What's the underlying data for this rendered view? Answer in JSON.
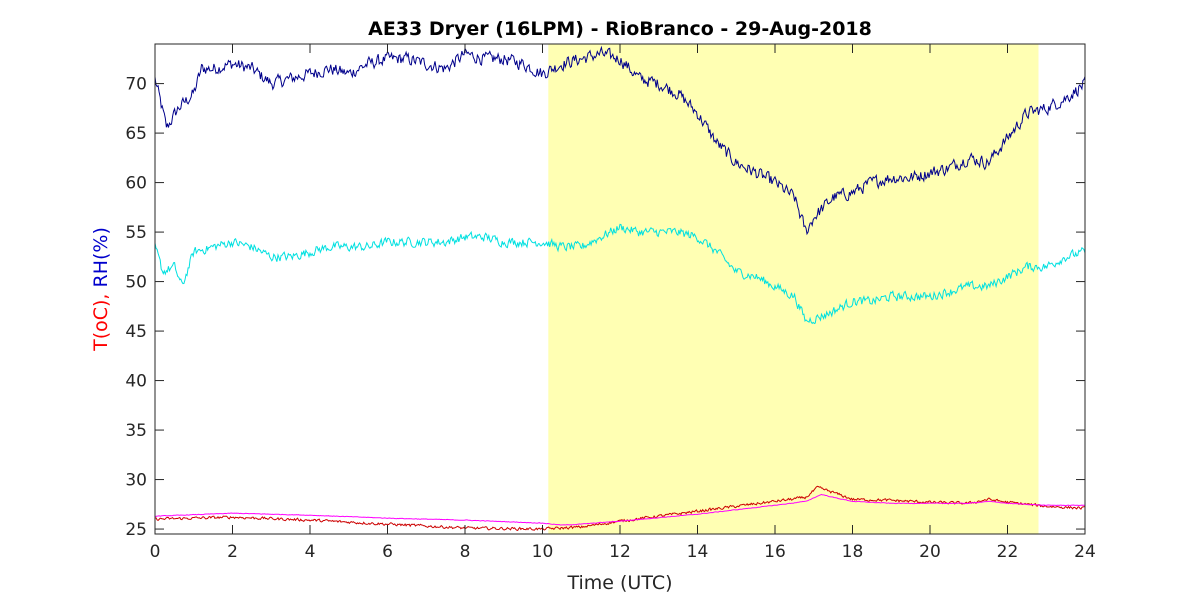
{
  "chart_data": {
    "type": "line",
    "title": "AE33 Dryer (16LPM)  - RioBranco - 29-Aug-2018",
    "xlabel": "Time (UTC)",
    "ylabel_parts": [
      {
        "text": "T(oC), ",
        "color": "#ff0000"
      },
      {
        "text": "RH(%)",
        "color": "#0000cc"
      }
    ],
    "xlim": [
      0,
      24
    ],
    "ylim": [
      24.5,
      74
    ],
    "xticks": [
      0,
      2,
      4,
      6,
      8,
      10,
      12,
      14,
      16,
      18,
      20,
      22,
      24
    ],
    "yticks": [
      25,
      30,
      35,
      40,
      45,
      50,
      55,
      60,
      65,
      70
    ],
    "highlight": {
      "x_start": 10.15,
      "x_end": 22.8,
      "color": "#ffffb3"
    },
    "grid": false,
    "series": [
      {
        "color": "#00008b",
        "noise": 0.9,
        "x": [
          0,
          0.3,
          0.6,
          1,
          1.2,
          1.5,
          2,
          2.5,
          3,
          3.5,
          4,
          4.5,
          5,
          5.5,
          6,
          6.5,
          7,
          7.5,
          8,
          8.5,
          9,
          9.5,
          10,
          10.5,
          11,
          11.5,
          12,
          12.5,
          13,
          13.5,
          14,
          14.5,
          15,
          15.5,
          16,
          16.5,
          16.8,
          17,
          17.5,
          18,
          18.5,
          19,
          19.5,
          20,
          20.5,
          21,
          21.5,
          22,
          22.5,
          23,
          23.5,
          24
        ],
        "y": [
          70.5,
          65.5,
          67.5,
          69,
          71.5,
          71.5,
          72,
          71.5,
          70,
          70.5,
          71,
          71.5,
          71,
          72,
          72.5,
          72.5,
          72,
          71.5,
          73,
          72.5,
          72.5,
          72,
          71,
          72,
          72.5,
          73,
          72.5,
          70.5,
          70,
          69,
          67,
          64,
          62,
          61,
          60,
          58.5,
          55,
          56.5,
          58.5,
          59,
          60,
          60.5,
          60.5,
          61,
          61.5,
          62.5,
          62,
          64.5,
          67,
          67.5,
          68.5,
          70
        ]
      },
      {
        "color": "#00e0e0",
        "noise": 0.65,
        "x": [
          0,
          0.2,
          0.5,
          0.7,
          1,
          1.5,
          2,
          2.5,
          3,
          3.5,
          4,
          4.5,
          5,
          5.5,
          6,
          6.5,
          7,
          7.5,
          8,
          8.5,
          9,
          9.5,
          10,
          10.5,
          11,
          11.5,
          12,
          12.5,
          13,
          13.5,
          14,
          14.5,
          15,
          15.5,
          16,
          16.5,
          16.8,
          17.2,
          17.5,
          18,
          18.5,
          19,
          19.5,
          20,
          20.5,
          21,
          21.5,
          22,
          22.5,
          23,
          23.5,
          24
        ],
        "y": [
          53.5,
          51,
          51.5,
          49.5,
          53,
          53.5,
          54,
          53.5,
          52.5,
          52.5,
          53,
          53.5,
          53.5,
          53.5,
          54,
          54,
          54,
          54,
          54.5,
          54.5,
          54,
          54,
          54,
          53.5,
          53.5,
          54.5,
          55.5,
          55,
          55,
          55,
          54.5,
          53,
          51,
          50.5,
          49.5,
          48.5,
          46,
          46.5,
          47,
          48,
          48,
          48.5,
          48.5,
          48.5,
          49,
          49.5,
          49.5,
          50.5,
          51.5,
          51.5,
          52.5,
          53
        ]
      },
      {
        "color": "#cc0000",
        "noise": 0.2,
        "x": [
          0,
          2,
          4,
          6,
          8,
          10,
          11,
          12,
          14,
          16,
          16.8,
          17.1,
          17.5,
          18,
          19,
          20,
          21,
          21.5,
          22,
          23,
          24
        ],
        "y": [
          26,
          26.2,
          25.9,
          25.5,
          25.1,
          25,
          25.2,
          25.8,
          26.8,
          27.8,
          28.2,
          29.2,
          28.7,
          28,
          27.9,
          27.7,
          27.6,
          28,
          27.7,
          27.3,
          27.1
        ]
      },
      {
        "color": "#ff00ff",
        "noise": 0.04,
        "x": [
          0,
          2,
          4,
          6,
          8,
          10,
          10.5,
          11,
          12,
          14,
          16,
          16.8,
          17.2,
          17.5,
          18,
          19,
          20,
          21,
          21.5,
          22,
          23,
          24
        ],
        "y": [
          26.3,
          26.6,
          26.4,
          26.1,
          25.9,
          25.6,
          25.4,
          25.5,
          25.8,
          26.5,
          27.4,
          27.8,
          28.5,
          28.2,
          27.8,
          27.6,
          27.6,
          27.6,
          27.8,
          27.6,
          27.4,
          27.4
        ]
      }
    ]
  }
}
